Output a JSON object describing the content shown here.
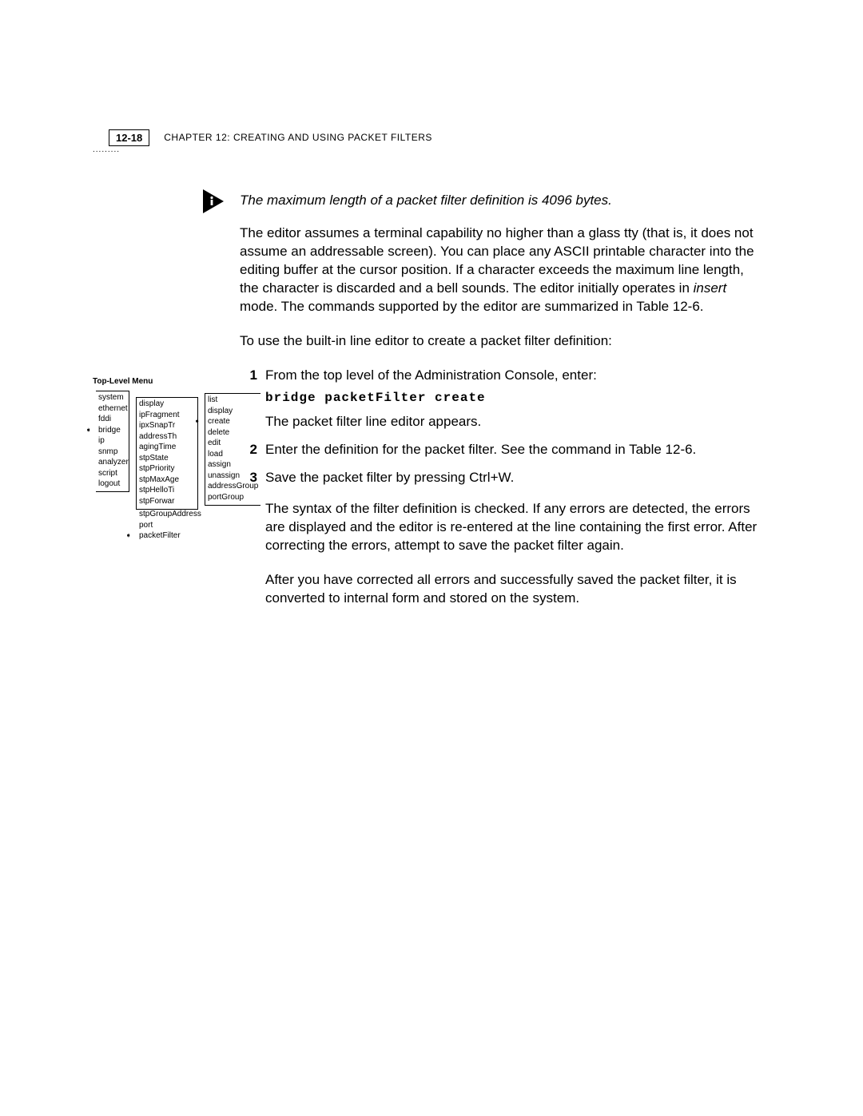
{
  "header": {
    "page_number": "12-18",
    "chapter_label": "CHAPTER 12: CREATING AND USING PACKET FILTERS",
    "dots": "........."
  },
  "note": "The maximum length of a packet filter definition is 4096 bytes.",
  "para1_parts": {
    "a": "The editor assumes a terminal capability no higher than a glass tty (that is, it does not assume an addressable screen). You can place any ASCII printable character into the editing buffer at the cursor position. If a character exceeds the maximum line length, the character is discarded and a bell sounds. The editor initially operates in ",
    "insert": "insert",
    "b": " mode. The commands supported by the editor are summarized in Table 12-6."
  },
  "para2": "To use the built-in line editor to create a packet filter definition:",
  "steps": {
    "s1": {
      "num": "1",
      "line1": "From the top level of the Administration Console, enter:",
      "command": "bridge packetFilter create",
      "line2": "The packet filter line editor appears."
    },
    "s2": {
      "num": "2",
      "line1": "Enter the definition for the packet filter. See the command in Table 12-6."
    },
    "s3": {
      "num": "3",
      "line1": "Save the packet filter by pressing Ctrl+W.",
      "para_a": "The syntax of the filter definition is checked. If any errors are detected, the errors are displayed and the editor is re-entered at the line containing the first error. After correcting the errors, attempt to save the packet filter again.",
      "para_b": "After you have corrected all errors and successfully saved the packet filter, it is converted to internal form and stored on the system."
    }
  },
  "menu": {
    "title": "Top-Level Menu",
    "col1": [
      "system",
      "ethernet",
      "fddi",
      "bridge",
      "ip",
      "snmp",
      "analyzer",
      "script",
      "logout"
    ],
    "col1_selected": "bridge",
    "col2": [
      "display",
      "ipFragment",
      "ipxSnapTr",
      "addressTh",
      "agingTime",
      "stpState",
      "stpPriority",
      "stpMaxAge",
      "stpHelloTi",
      "stpForwar",
      "stpGroupAddress",
      "port",
      "packetFilter"
    ],
    "col2_selected": "packetFilter",
    "col3": [
      "list",
      "display",
      "create",
      "delete",
      "edit",
      "load",
      "assign",
      "unassign",
      "addressGroup",
      "portGroup"
    ],
    "col3_selected": "create"
  },
  "colors": {
    "text": "#000000",
    "background": "#ffffff"
  }
}
